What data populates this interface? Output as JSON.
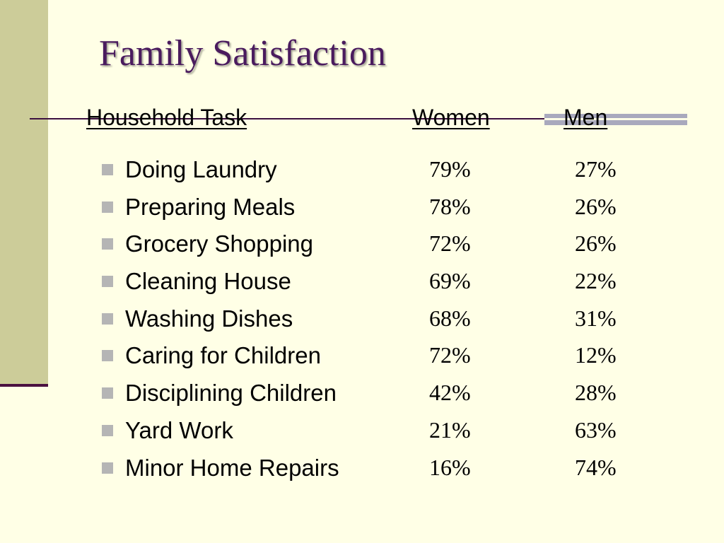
{
  "slide": {
    "title": "Family Satisfaction"
  },
  "table": {
    "headers": {
      "task": "Household Task",
      "women": "Women",
      "men": "Men"
    },
    "rows": [
      {
        "task": "Doing Laundry",
        "women": "79%",
        "men": "27%"
      },
      {
        "task": "Preparing Meals",
        "women": "78%",
        "men": "26%"
      },
      {
        "task": "Grocery Shopping",
        "women": "72%",
        "men": "26%"
      },
      {
        "task": "Cleaning House",
        "women": "69%",
        "men": "22%"
      },
      {
        "task": "Washing Dishes",
        "women": "68%",
        "men": "31%"
      },
      {
        "task": "Caring for Children",
        "women": "72%",
        "men": "12%"
      },
      {
        "task": "Disciplining Children",
        "women": "42%",
        "men": "28%"
      },
      {
        "task": "Yard Work",
        "women": "21%",
        "men": "63%"
      },
      {
        "task": "Minor Home Repairs",
        "women": "16%",
        "men": "74%"
      }
    ]
  },
  "colors": {
    "background": "#ffffe6",
    "left_band": "#cccc99",
    "title": "#4a1b5e",
    "bullet": "#b5b5b5"
  }
}
